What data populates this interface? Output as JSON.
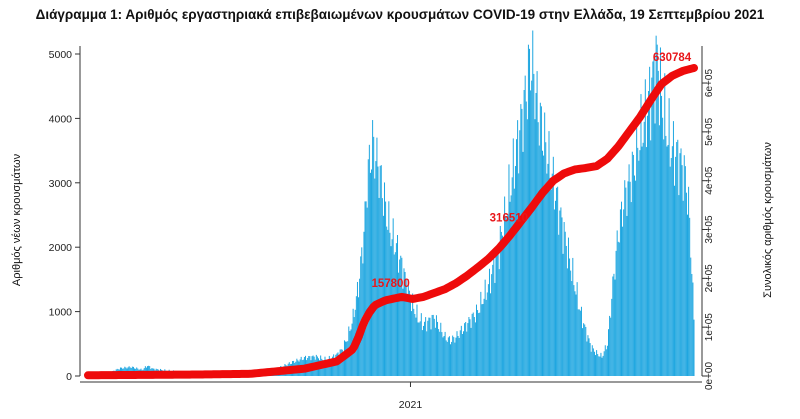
{
  "chart_data": {
    "type": "bar",
    "title": "Διάγραμμα 1: Αριθμός εργαστηριακά επιβεβαιωμένων κρουσμάτων COVID-19 στην Ελλάδα, 19 Σεπτεμβρίου 2021",
    "ylabel": "Αριθμός νέων κρουσμάτων",
    "ylabel_right": "Συνολικός αριθμός κρουσμάτων",
    "xlabel": "",
    "x_tick_labels": [
      "2021"
    ],
    "ylim": [
      0,
      5000
    ],
    "y_ticks": [
      0,
      1000,
      2000,
      3000,
      4000,
      5000
    ],
    "ylim_right": [
      0,
      630784
    ],
    "y_ticks_right": [
      "0e+00",
      "1e+05",
      "2e+05",
      "3e+05",
      "4e+05",
      "5e+05",
      "6e+05"
    ],
    "y_ticks_right_values": [
      0,
      100000,
      200000,
      300000,
      400000,
      500000,
      600000
    ],
    "series": [
      {
        "values": [
          [
            0,
            2
          ],
          [
            10,
            8
          ],
          [
            20,
            45
          ],
          [
            25,
            90
          ],
          [
            30,
            120
          ],
          [
            40,
            140
          ],
          [
            50,
            95
          ],
          [
            55,
            160
          ],
          [
            60,
            110
          ],
          [
            70,
            90
          ],
          [
            80,
            75
          ],
          [
            90,
            60
          ],
          [
            100,
            35
          ],
          [
            110,
            25
          ],
          [
            120,
            20
          ],
          [
            130,
            15
          ],
          [
            140,
            12
          ],
          [
            150,
            20
          ],
          [
            160,
            35
          ],
          [
            170,
            80
          ],
          [
            180,
            150
          ],
          [
            190,
            220
          ],
          [
            200,
            280
          ],
          [
            210,
            300
          ],
          [
            220,
            250
          ],
          [
            225,
            280
          ],
          [
            230,
            330
          ],
          [
            235,
            410
          ],
          [
            240,
            600
          ],
          [
            245,
            900
          ],
          [
            250,
            1400
          ],
          [
            255,
            2200
          ],
          [
            258,
            3000
          ],
          [
            260,
            3300
          ],
          [
            263,
            3600
          ],
          [
            266,
            3400
          ],
          [
            270,
            3100
          ],
          [
            275,
            2600
          ],
          [
            280,
            2200
          ],
          [
            285,
            2000
          ],
          [
            290,
            1700
          ],
          [
            295,
            1400
          ],
          [
            300,
            1100
          ],
          [
            305,
            900
          ],
          [
            310,
            800
          ],
          [
            315,
            850
          ],
          [
            320,
            900
          ],
          [
            325,
            750
          ],
          [
            330,
            600
          ],
          [
            335,
            550
          ],
          [
            340,
            600
          ],
          [
            345,
            700
          ],
          [
            350,
            800
          ],
          [
            355,
            900
          ],
          [
            360,
            1000
          ],
          [
            365,
            1200
          ],
          [
            370,
            1400
          ],
          [
            375,
            1700
          ],
          [
            380,
            2000
          ],
          [
            385,
            2400
          ],
          [
            390,
            2900
          ],
          [
            395,
            3400
          ],
          [
            400,
            3900
          ],
          [
            405,
            4400
          ],
          [
            408,
            4800
          ],
          [
            410,
            4900
          ],
          [
            413,
            4500
          ],
          [
            416,
            4100
          ],
          [
            420,
            3800
          ],
          [
            425,
            3400
          ],
          [
            430,
            3000
          ],
          [
            435,
            2600
          ],
          [
            440,
            2200
          ],
          [
            445,
            1800
          ],
          [
            450,
            1400
          ],
          [
            455,
            1000
          ],
          [
            460,
            700
          ],
          [
            465,
            450
          ],
          [
            470,
            350
          ],
          [
            475,
            300
          ],
          [
            480,
            500
          ],
          [
            485,
            1400
          ],
          [
            490,
            2200
          ],
          [
            495,
            2700
          ],
          [
            500,
            3000
          ],
          [
            505,
            3300
          ],
          [
            510,
            3700
          ],
          [
            515,
            4000
          ],
          [
            520,
            4400
          ],
          [
            523,
            4700
          ],
          [
            526,
            4900
          ],
          [
            530,
            4300
          ],
          [
            535,
            3800
          ],
          [
            540,
            3500
          ],
          [
            545,
            3400
          ],
          [
            550,
            3200
          ],
          [
            553,
            3000
          ],
          [
            556,
            2400
          ],
          [
            560,
            900
          ]
        ]
      },
      {
        "values": [
          [
            0,
            1500
          ],
          [
            100,
            3000
          ],
          [
            150,
            4500
          ],
          [
            200,
            15000
          ],
          [
            230,
            30000
          ],
          [
            245,
            55000
          ],
          [
            250,
            80000
          ],
          [
            255,
            110000
          ],
          [
            260,
            130000
          ],
          [
            265,
            145000
          ],
          [
            275,
            155000
          ],
          [
            290,
            162000
          ],
          [
            300,
            157800
          ],
          [
            310,
            162000
          ],
          [
            320,
            170000
          ],
          [
            330,
            178000
          ],
          [
            340,
            190000
          ],
          [
            350,
            205000
          ],
          [
            360,
            222000
          ],
          [
            370,
            240000
          ],
          [
            380,
            262000
          ],
          [
            390,
            288000
          ],
          [
            400,
            316500
          ],
          [
            410,
            345000
          ],
          [
            420,
            375000
          ],
          [
            430,
            400000
          ],
          [
            440,
            415000
          ],
          [
            450,
            423000
          ],
          [
            460,
            426000
          ],
          [
            470,
            430000
          ],
          [
            480,
            445000
          ],
          [
            490,
            470000
          ],
          [
            500,
            500000
          ],
          [
            510,
            530000
          ],
          [
            520,
            565000
          ],
          [
            530,
            598000
          ],
          [
            540,
            615000
          ],
          [
            550,
            625000
          ],
          [
            560,
            630784
          ]
        ]
      }
    ],
    "annotations": [
      "630784",
      "316510",
      "157800"
    ]
  }
}
